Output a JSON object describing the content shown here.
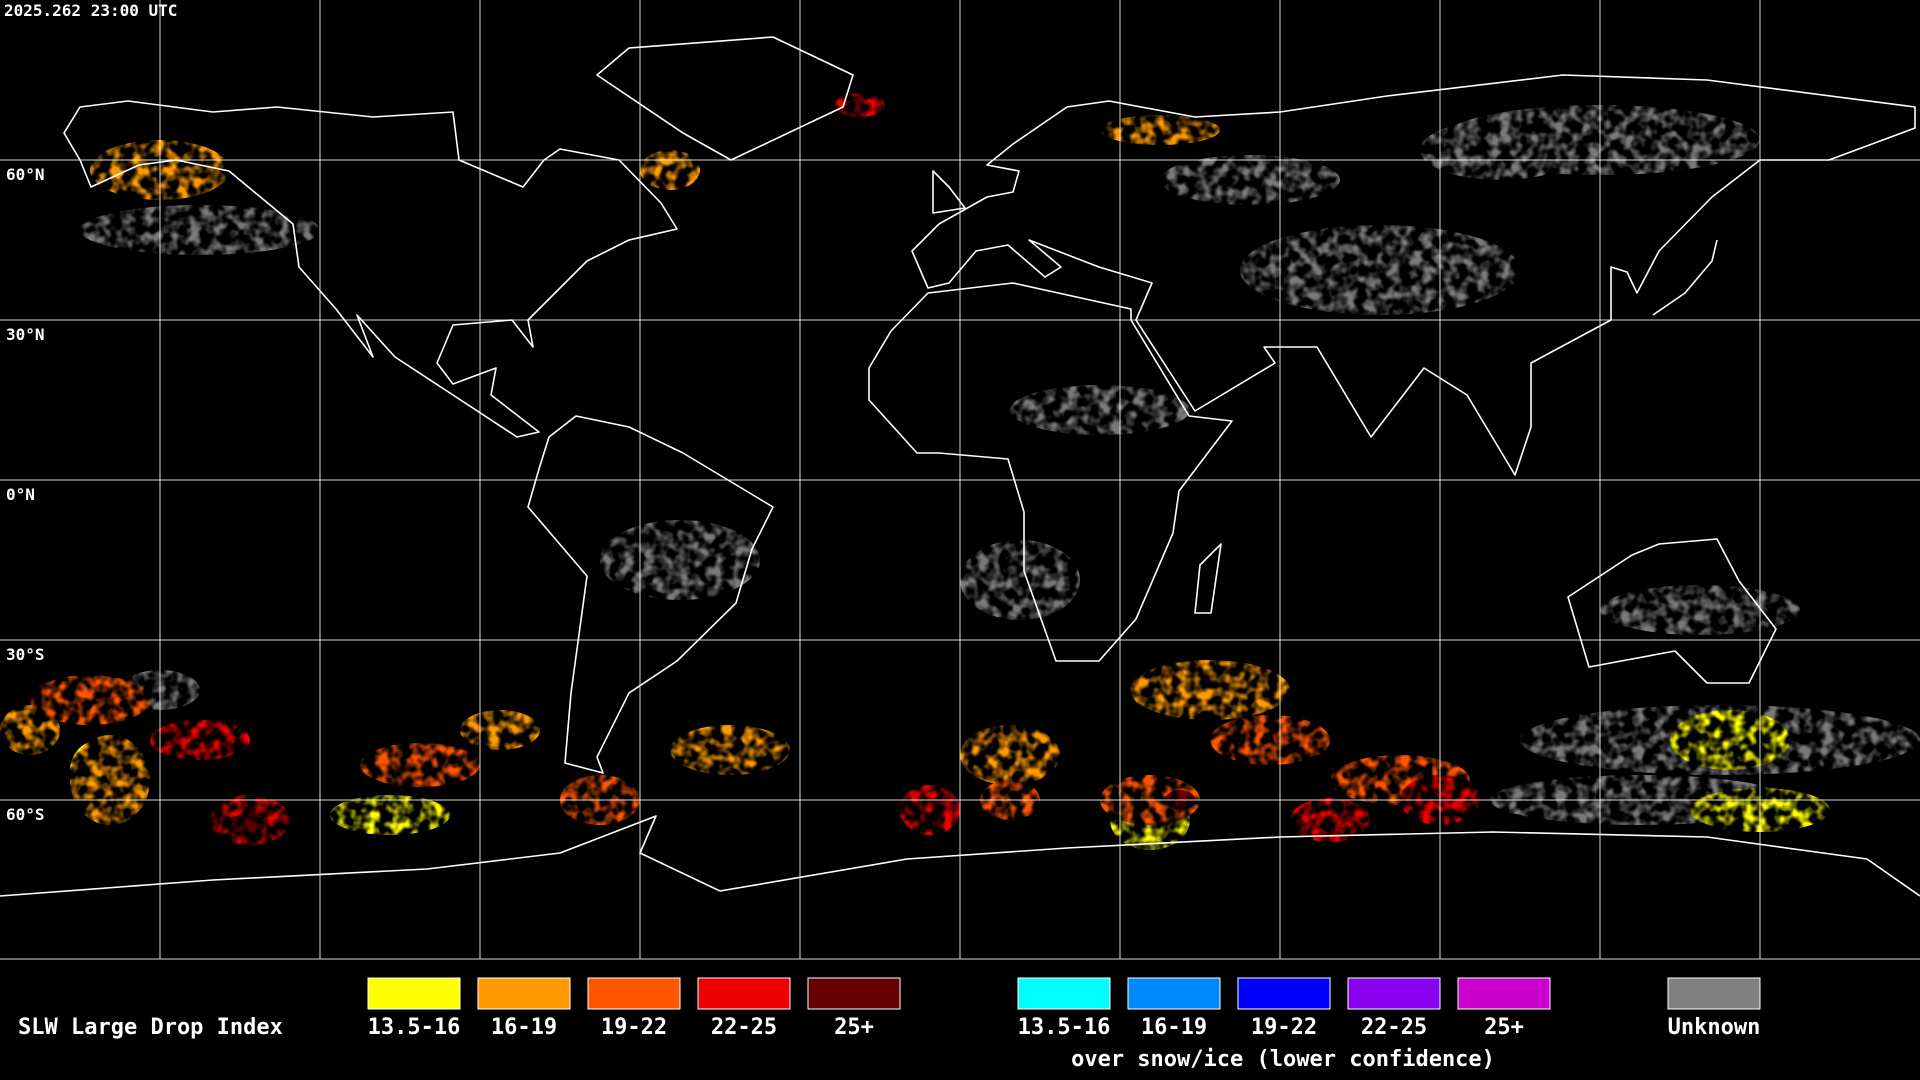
{
  "timestamp": "2025.262 23:00 UTC",
  "latitude_labels": [
    "60°N",
    "30°N",
    "0°N",
    "30°S",
    "60°S"
  ],
  "legend": {
    "title": "SLW Large Drop Index",
    "liquid": [
      {
        "label": "13.5-16",
        "color": "#ffff00"
      },
      {
        "label": "16-19",
        "color": "#ff9a00"
      },
      {
        "label": "19-22",
        "color": "#ff5400"
      },
      {
        "label": "22-25",
        "color": "#ee0000"
      },
      {
        "label": "25+",
        "color": "#640000"
      }
    ],
    "snow_ice": [
      {
        "label": "13.5-16",
        "color": "#00ffff"
      },
      {
        "label": "16-19",
        "color": "#0088ff"
      },
      {
        "label": "19-22",
        "color": "#0000ff"
      },
      {
        "label": "22-25",
        "color": "#8800ee"
      },
      {
        "label": "25+",
        "color": "#cc00cc"
      }
    ],
    "snow_ice_note": "over snow/ice (lower confidence)",
    "unknown": {
      "label": "Unknown",
      "color": "#808080"
    }
  }
}
